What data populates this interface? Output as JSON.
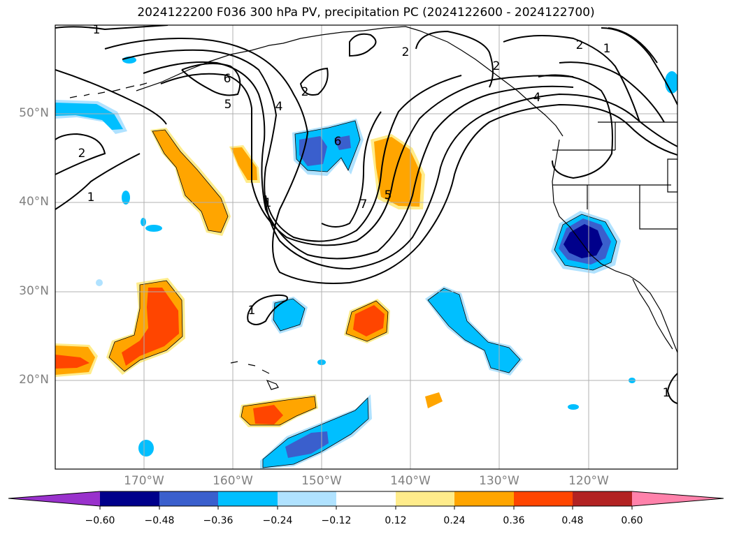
{
  "title": "2024122200 F036 300 hPa PV, precipitation PC (2024122600 - 2024122700)",
  "lat_labels": [
    "50°N",
    "40°N",
    "30°N",
    "20°N"
  ],
  "lon_labels": [
    "170°W",
    "160°W",
    "150°W",
    "140°W",
    "130°W",
    "120°W"
  ],
  "contour_labels": [
    "1",
    "2",
    "2",
    "6",
    "5",
    "4",
    "2",
    "2",
    "1",
    "4",
    "6",
    "1",
    "7",
    "5",
    "1",
    "1",
    "2",
    "1"
  ],
  "colorbar": {
    "ticks": [
      "−0.60",
      "−0.48",
      "−0.36",
      "−0.24",
      "−0.12",
      "0.12",
      "0.24",
      "0.36",
      "0.48",
      "0.60"
    ],
    "colors": [
      "#9932cc",
      "#00008b",
      "#3a5fcd",
      "#00bfff",
      "#b0e2ff",
      "#ffffff",
      "#ffec8b",
      "#ffa500",
      "#ff4500",
      "#b22222",
      "#ff82ab"
    ]
  }
}
